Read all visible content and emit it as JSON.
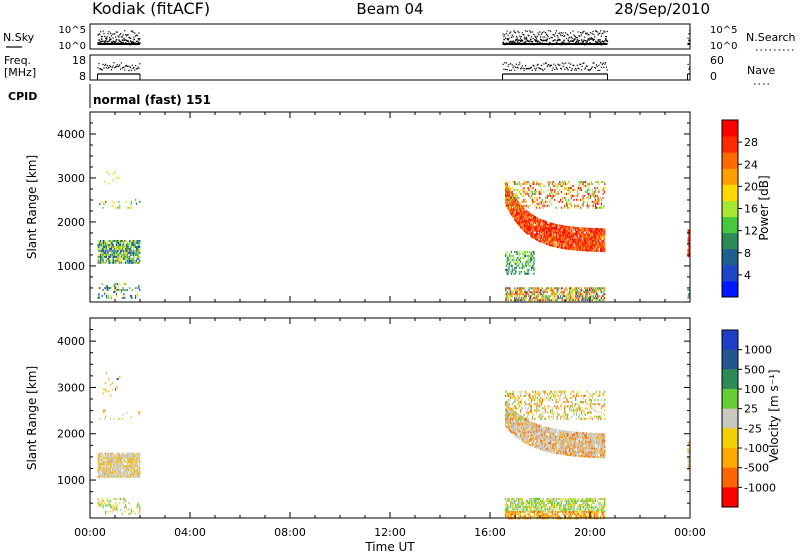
{
  "header": {
    "station": "Kodiak (fitACF)",
    "beam": "Beam 04",
    "date": "28/Sep/2010"
  },
  "panels": {
    "nsky_label": "N.Sky",
    "nsky_ticks": [
      "10^5",
      "10^0"
    ],
    "nsearch_label": "N.Search",
    "nsearch_ticks": [
      "10^5",
      "10^0"
    ],
    "freq_label_1": "Freq.",
    "freq_label_2": "[MHz]",
    "freq_ticks": [
      "18",
      "8"
    ],
    "nave_label": "Nave",
    "nave_ticks": [
      "60",
      "0"
    ],
    "cpid_label": "CPID",
    "cpid_value": "normal (fast) 151"
  },
  "colors": {
    "power_scale": [
      "#0018ff",
      "#1e46c8",
      "#1f5f8c",
      "#2e8b57",
      "#48c83c",
      "#a6e830",
      "#ffd800",
      "#ffa000",
      "#ff6a00",
      "#ff2a00",
      "#ff0000"
    ],
    "velocity_scale": [
      "#1d3fc8",
      "#25558f",
      "#2e8b57",
      "#66cc33",
      "#c8c8c0",
      "#f5d000",
      "#ffa800",
      "#ff6600",
      "#ff0000"
    ],
    "ground_scatter": "#c8c8c0"
  },
  "chart_data": [
    {
      "type": "heatmap",
      "name": "power",
      "ylabel": "Slant Range [km]",
      "colorbar_label": "Power [dB]",
      "colorbar_ticks": [
        "28",
        "24",
        "20",
        "16",
        "12",
        "8",
        "4"
      ],
      "y_ticks": [
        "4000",
        "3000",
        "2000",
        "1000"
      ],
      "ylim": [
        180,
        4500
      ],
      "xlim": [
        0,
        24
      ],
      "data_intervals_hours": [
        [
          0.3,
          2.0
        ],
        [
          16.5,
          20.7
        ],
        [
          23.9,
          24.0
        ]
      ],
      "regions": [
        {
          "t": [
            0.3,
            2.0
          ],
          "r": [
            1050,
            1550
          ],
          "level": "12-16 dB"
        },
        {
          "t": [
            0.3,
            2.0
          ],
          "r": [
            250,
            600
          ],
          "level": "4-12 dB"
        },
        {
          "t": [
            16.6,
            20.6
          ],
          "r": [
            1400,
            2300
          ],
          "level": "24-28 dB"
        },
        {
          "t": [
            16.6,
            20.6
          ],
          "r": [
            2300,
            2900
          ],
          "level": "16-28 dB"
        },
        {
          "t": [
            16.6,
            20.6
          ],
          "r": [
            200,
            500
          ],
          "level": "4-24 dB"
        },
        {
          "t": [
            16.6,
            17.8
          ],
          "r": [
            800,
            1300
          ],
          "level": "8-16 dB"
        },
        {
          "t": [
            23.9,
            24.0
          ],
          "r": [
            1200,
            1800
          ],
          "level": "24-28 dB"
        }
      ]
    },
    {
      "type": "heatmap",
      "name": "velocity",
      "ylabel": "Slant Range [km]",
      "colorbar_label": "Velocity [m s⁻¹]",
      "colorbar_ticks": [
        "1000",
        "500",
        "100",
        "25",
        "-25",
        "-100",
        "-500",
        "-1000"
      ],
      "y_ticks": [
        "4000",
        "3000",
        "2000",
        "1000"
      ],
      "ylim": [
        180,
        4500
      ],
      "xlim": [
        0,
        24
      ],
      "xlabel": "Time UT",
      "x_ticks": [
        "00:00",
        "04:00",
        "08:00",
        "12:00",
        "16:00",
        "20:00",
        "00:00"
      ],
      "regions": [
        {
          "t": [
            0.3,
            2.0
          ],
          "r": [
            1050,
            1550
          ],
          "level": "ground scatter"
        },
        {
          "t": [
            16.6,
            20.6
          ],
          "r": [
            1500,
            2200
          ],
          "level": "ground scatter"
        },
        {
          "t": [
            16.6,
            20.6
          ],
          "r": [
            2300,
            2900
          ],
          "level": "-100 to -500"
        },
        {
          "t": [
            16.6,
            20.6
          ],
          "r": [
            300,
            600
          ],
          "level": "25 to 100"
        },
        {
          "t": [
            16.6,
            20.6
          ],
          "r": [
            150,
            300
          ],
          "level": "-100 to -500"
        }
      ]
    }
  ]
}
